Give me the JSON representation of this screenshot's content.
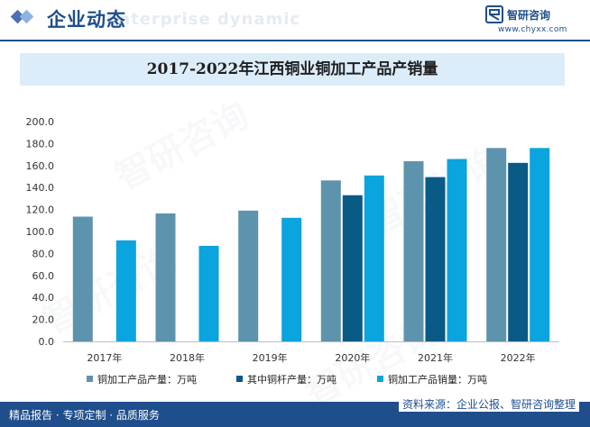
{
  "header": {
    "section_title": "企业动态",
    "ghost_text": "Enterprise dynamic",
    "logo_brand": "智研咨询",
    "logo_url": "www.chyxx.com"
  },
  "watermark": {
    "text": "智研咨询"
  },
  "colors": {
    "series_1": "#5e93ad",
    "series_2": "#0a5a86",
    "series_3": "#0aa4de",
    "brand": "#1f4e8c",
    "title_bg": "#dcecf9"
  },
  "chart_data": {
    "type": "bar",
    "title": "2017-2022年江西铜业铜加工产品产销量",
    "categories": [
      "2017年",
      "2018年",
      "2019年",
      "2020年",
      "2021年",
      "2022年"
    ],
    "series": [
      {
        "name": "铜加工产品产量：万吨",
        "values": [
          113.5,
          116.5,
          119.0,
          146.5,
          164.0,
          176.0
        ]
      },
      {
        "name": "其中铜杆产量：万吨",
        "values": [
          null,
          null,
          null,
          133.0,
          149.5,
          162.5
        ]
      },
      {
        "name": "铜加工产品销量：万吨",
        "values": [
          92.0,
          87.0,
          112.5,
          151.0,
          166.0,
          176.0
        ]
      }
    ],
    "ylim": [
      0,
      200
    ],
    "yticks": [
      "0.0",
      "20.0",
      "40.0",
      "60.0",
      "80.0",
      "100.0",
      "120.0",
      "140.0",
      "160.0",
      "180.0",
      "200.0"
    ],
    "xlabel": "",
    "ylabel": "",
    "grid": false,
    "legend_position": "bottom"
  },
  "footer": {
    "left_text": "精品报告 · 专项定制 · 品质服务",
    "source_text": "资料来源：企业公报、智研咨询整理"
  }
}
